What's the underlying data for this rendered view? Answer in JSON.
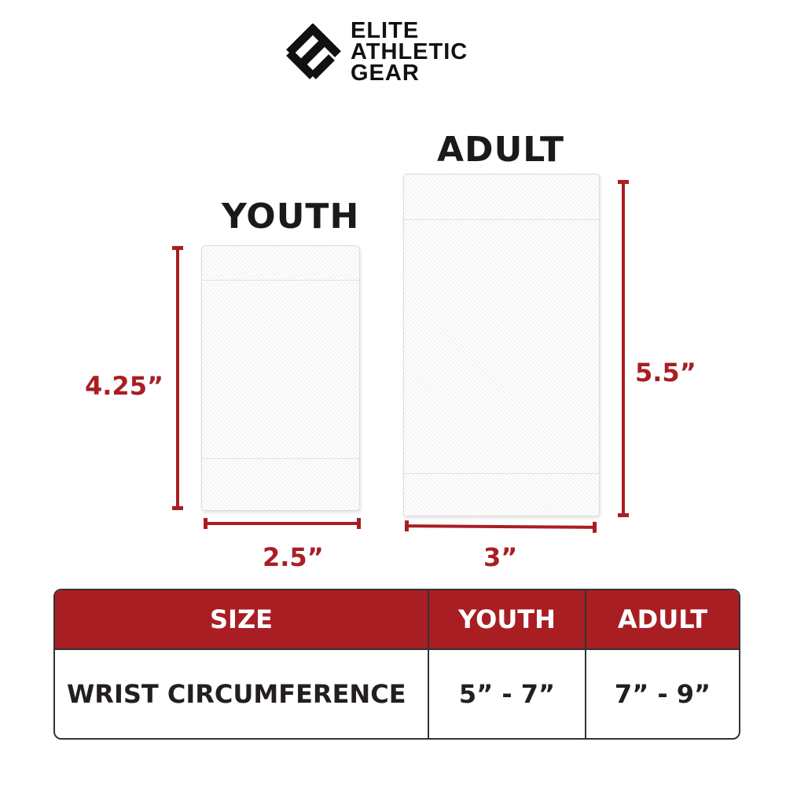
{
  "brand": {
    "line1": "ELITE",
    "line2": "ATHLETIC",
    "line3": "GEAR"
  },
  "youth": {
    "label": "YOUTH",
    "height": "4.25”",
    "width": "2.5”"
  },
  "adult": {
    "label": "ADULT",
    "height": "5.5”",
    "width": "3”"
  },
  "colors": {
    "accent": "#a91e23",
    "text": "#231f20"
  },
  "table": {
    "headers": [
      "SIZE",
      "YOUTH",
      "ADULT"
    ],
    "rows": [
      [
        "WRIST CIRCUMFERENCE",
        "5” - 7”",
        "7” - 9”"
      ]
    ]
  }
}
